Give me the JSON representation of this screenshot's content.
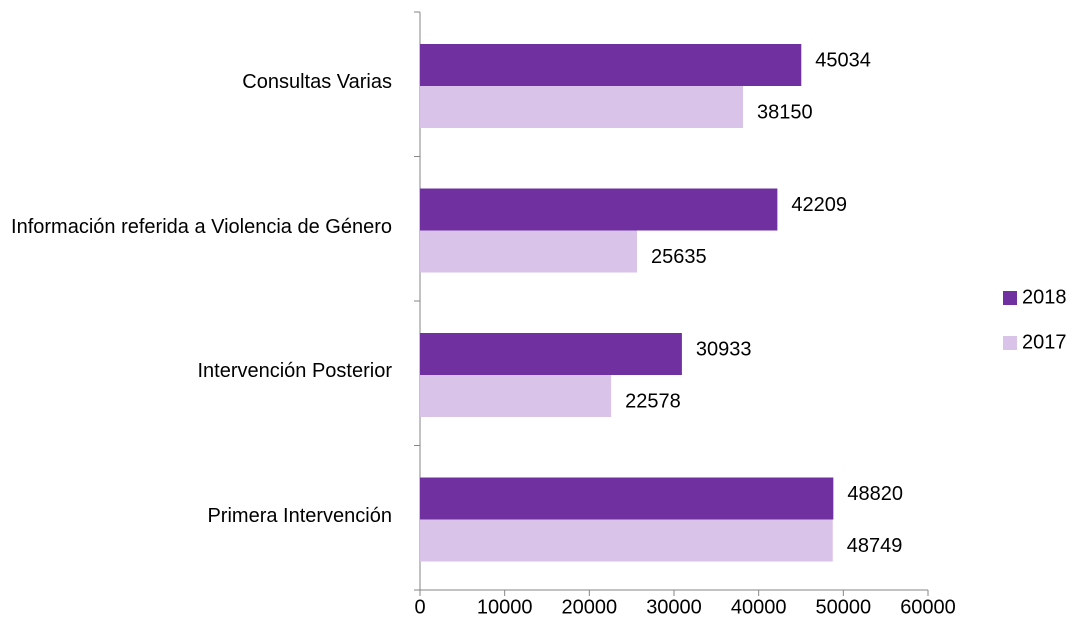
{
  "chart_data": {
    "type": "bar",
    "orientation": "horizontal",
    "categories": [
      "Consultas Varias",
      "Información referida a Violencia de Género",
      "Intervención Posterior",
      "Primera Intervención"
    ],
    "series": [
      {
        "name": "2018",
        "color": "#7030a0",
        "values": [
          45034,
          42209,
          30933,
          48820
        ]
      },
      {
        "name": "2017",
        "color": "#d9c3e9",
        "values": [
          38150,
          25635,
          22578,
          48749
        ]
      }
    ],
    "xlim": [
      0,
      60000
    ],
    "xticks": [
      0,
      10000,
      20000,
      30000,
      40000,
      50000,
      60000
    ],
    "grid": false,
    "legend": "right"
  }
}
